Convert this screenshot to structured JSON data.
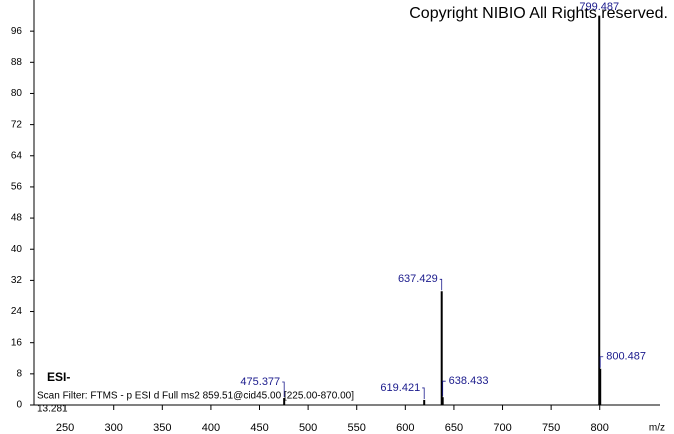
{
  "chart_data": {
    "type": "spectrum",
    "title": "Copyright NIBIO All Rights reserved.",
    "ion_mode": "ESI-",
    "scan_filter": "Scan Filter: FTMS - p ESI d Full ms2 859.51@cid45.00 [225.00-870.00]",
    "retention_time": "13.281",
    "x_label": "m/z",
    "x": [
      475.377,
      619.421,
      637.429,
      638.433,
      799.487,
      800.487
    ],
    "values": [
      1.8,
      1.3,
      29.2,
      2,
      100,
      9.3
    ],
    "color": "#000000",
    "label_color": "#1a1a8c",
    "xlim": [
      218,
      862
    ],
    "ylim": [
      0,
      104
    ],
    "xticks": [
      250,
      300,
      350,
      400,
      450,
      500,
      550,
      600,
      650,
      700,
      750,
      800
    ],
    "yticks": [
      0,
      8,
      16,
      24,
      32,
      40,
      48,
      56,
      64,
      72,
      80,
      88,
      96
    ]
  }
}
